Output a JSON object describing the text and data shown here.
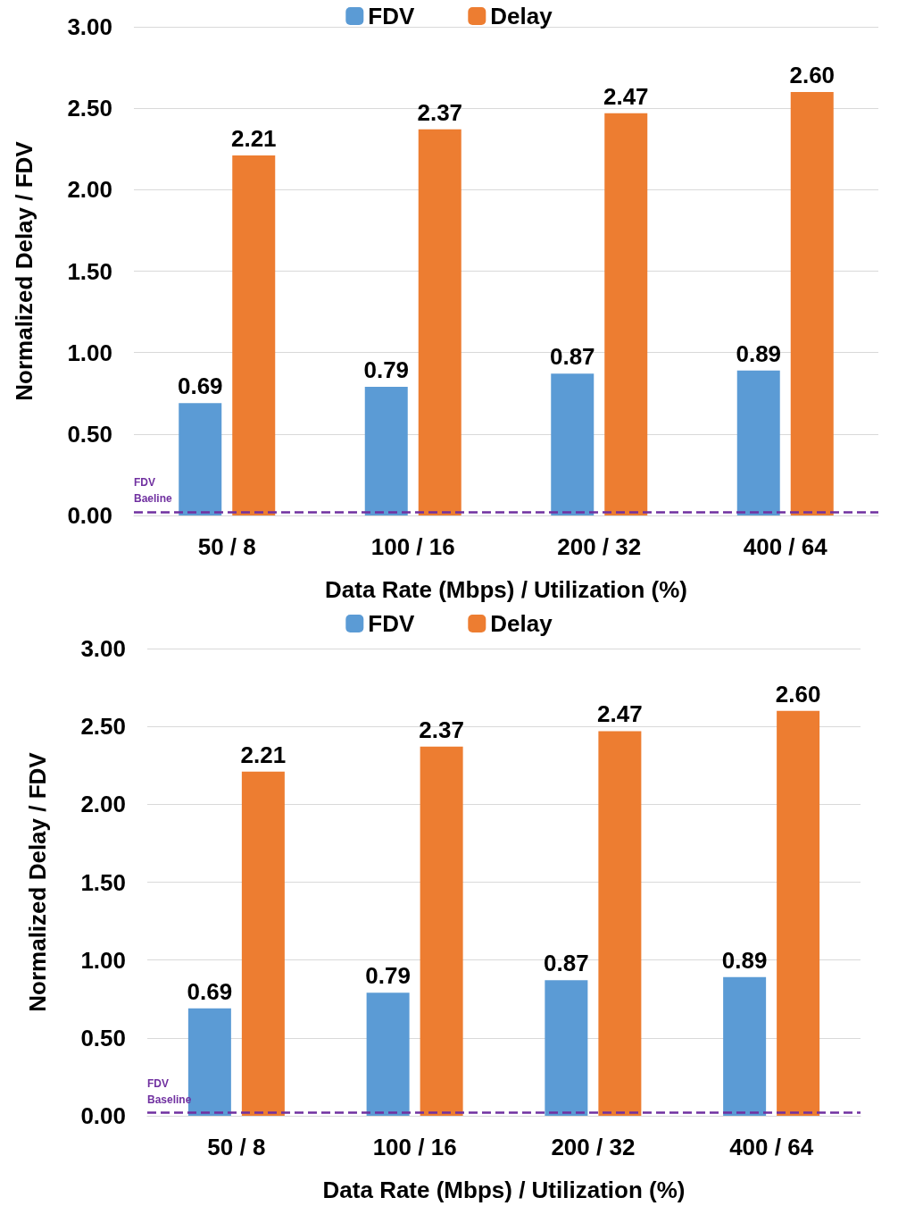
{
  "chart_data": [
    {
      "type": "bar",
      "xlabel": "Data Rate (Mbps) / Utilization (%)",
      "ylabel": "Normalized Delay / FDV",
      "categories": [
        "50 / 8",
        "100 / 16",
        "200 / 32",
        "400 / 64"
      ],
      "series": [
        {
          "name": "FDV",
          "color": "#5b9bd5",
          "values": [
            0.69,
            0.79,
            0.87,
            0.89
          ],
          "value_labels": [
            "0.69",
            "0.79",
            "0.87",
            "0.89"
          ]
        },
        {
          "name": "Delay",
          "color": "#ed7d31",
          "values": [
            2.21,
            2.37,
            2.47,
            2.6
          ],
          "value_labels": [
            "2.21",
            "2.37",
            "2.47",
            "2.60"
          ]
        }
      ],
      "ylim": [
        0,
        3
      ],
      "yticks": [
        {
          "value": 0,
          "label": "0.00"
        },
        {
          "value": 0.5,
          "label": "0.50"
        },
        {
          "value": 1,
          "label": "1.00"
        },
        {
          "value": 1.5,
          "label": "1.50"
        },
        {
          "value": 2,
          "label": "2.00"
        },
        {
          "value": 2.5,
          "label": "2.50"
        },
        {
          "value": 3,
          "label": "3.00"
        }
      ],
      "grid": "y",
      "legend": "top",
      "ref_lines": [
        {
          "axis": "y",
          "value": 0.02,
          "label": "FDV\nBaeline",
          "color": "#7030a0",
          "line_style": "dashed"
        }
      ]
    },
    {
      "type": "bar",
      "xlabel": "Data Rate (Mbps) / Utilization (%)",
      "ylabel": "Normalized Delay / FDV",
      "categories": [
        "50 / 8",
        "100 / 16",
        "200 / 32",
        "400 / 64"
      ],
      "series": [
        {
          "name": "FDV",
          "color": "#5b9bd5",
          "values": [
            0.69,
            0.79,
            0.87,
            0.89
          ],
          "value_labels": [
            "0.69",
            "0.79",
            "0.87",
            "0.89"
          ]
        },
        {
          "name": "Delay",
          "color": "#ed7d31",
          "values": [
            2.21,
            2.37,
            2.47,
            2.6
          ],
          "value_labels": [
            "2.21",
            "2.37",
            "2.47",
            "2.60"
          ]
        }
      ],
      "ylim": [
        0,
        3
      ],
      "yticks": [
        {
          "value": 0,
          "label": "0.00"
        },
        {
          "value": 0.5,
          "label": "0.50"
        },
        {
          "value": 1,
          "label": "1.00"
        },
        {
          "value": 1.5,
          "label": "1.50"
        },
        {
          "value": 2,
          "label": "2.00"
        },
        {
          "value": 2.5,
          "label": "2.50"
        },
        {
          "value": 3,
          "label": "3.00"
        }
      ],
      "grid": "y",
      "legend": "top",
      "ref_lines": [
        {
          "axis": "y",
          "value": 0.02,
          "label": "FDV\nBaseline",
          "color": "#7030a0",
          "line_style": "dashed"
        }
      ]
    }
  ]
}
